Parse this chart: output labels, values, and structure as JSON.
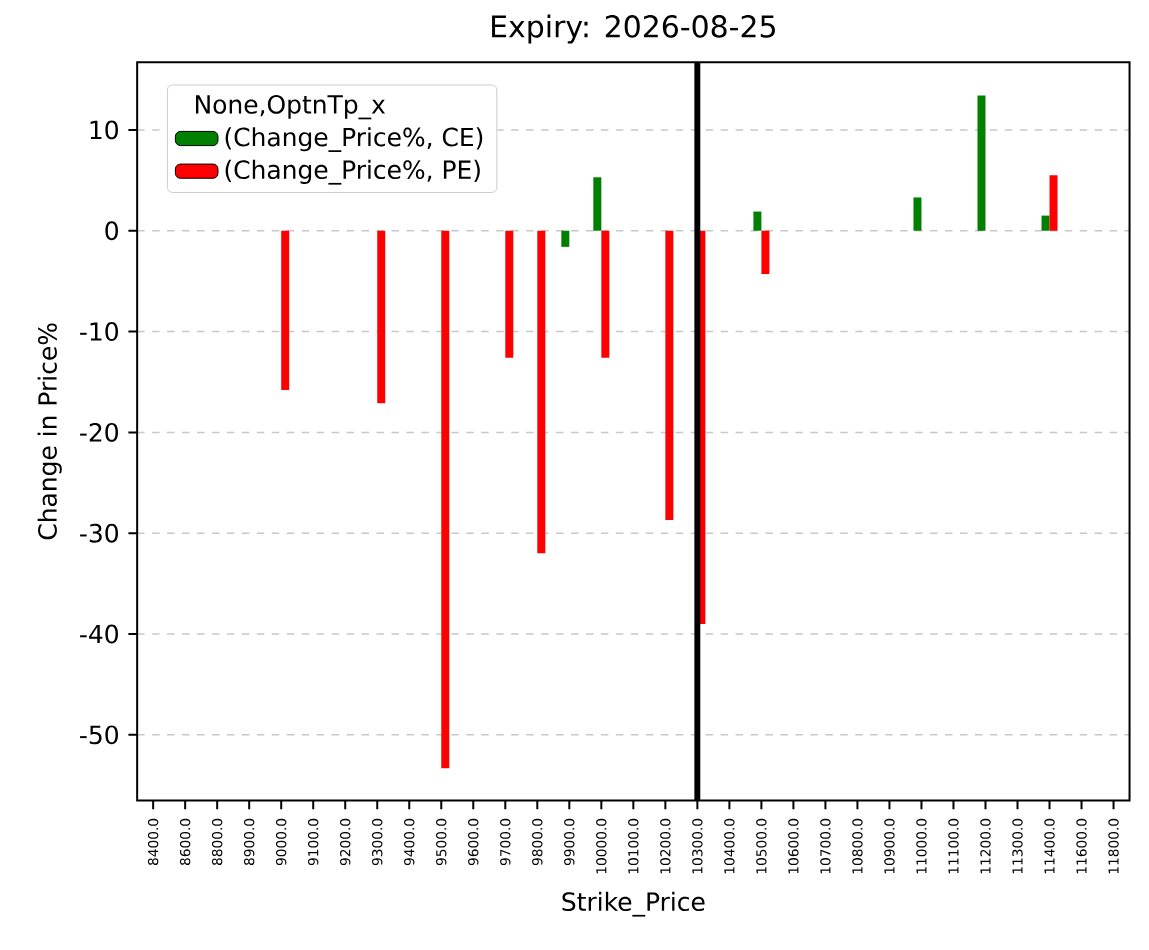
{
  "chart_data": {
    "type": "bar",
    "title": "Expiry: 2026-08-25",
    "xlabel": "Strike_Price",
    "ylabel": "Change in Price%",
    "legend_title": "None,OptnTp_x",
    "categories": [
      "8400.0",
      "8600.0",
      "8800.0",
      "8900.0",
      "9000.0",
      "9100.0",
      "9200.0",
      "9300.0",
      "9400.0",
      "9500.0",
      "9600.0",
      "9700.0",
      "9800.0",
      "9900.0",
      "10000.0",
      "10100.0",
      "10200.0",
      "10300.0",
      "10400.0",
      "10500.0",
      "10600.0",
      "10700.0",
      "10800.0",
      "10900.0",
      "11000.0",
      "11100.0",
      "11200.0",
      "11300.0",
      "11400.0",
      "11600.0",
      "11800.0"
    ],
    "series": [
      {
        "name": "(Change_Price%, CE)",
        "color": "#008000",
        "values": [
          null,
          null,
          null,
          null,
          null,
          null,
          null,
          null,
          null,
          null,
          null,
          null,
          null,
          -1.6,
          5.3,
          null,
          null,
          null,
          null,
          1.9,
          null,
          null,
          null,
          null,
          3.3,
          null,
          13.4,
          null,
          1.5,
          null,
          null
        ]
      },
      {
        "name": "(Change_Price%, PE)",
        "color": "#ff0000",
        "values": [
          null,
          null,
          null,
          null,
          -15.8,
          null,
          null,
          -17.1,
          null,
          -53.3,
          null,
          -12.6,
          -32.0,
          null,
          -12.6,
          null,
          -28.7,
          -39.0,
          null,
          -4.3,
          null,
          null,
          null,
          null,
          null,
          null,
          null,
          null,
          5.5,
          null,
          null
        ]
      }
    ],
    "ylim": [
      -56.5,
      16.7
    ],
    "yticks": [
      -50,
      -40,
      -30,
      -20,
      -10,
      0,
      10
    ],
    "grid": "y",
    "legend": "top left",
    "ref_lines": [
      {
        "axis": "x",
        "value": "10300.0",
        "color": "#000000",
        "line_style": "solid"
      }
    ]
  }
}
